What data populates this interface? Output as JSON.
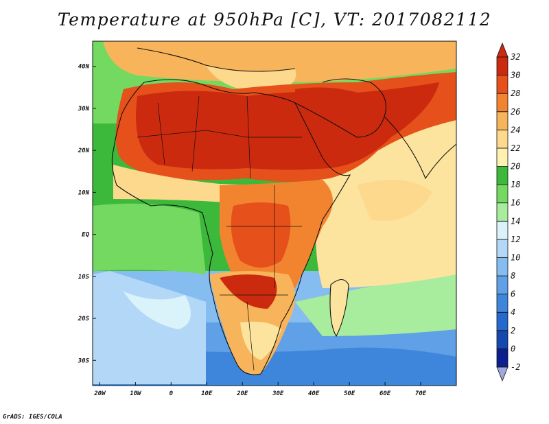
{
  "title": "Temperature at 950hPa [C], VT: 2017082112",
  "footer": "GrADS: IGES/COLA",
  "map": {
    "projection": "latlon",
    "lon_range": [
      -22,
      80
    ],
    "lat_range": [
      -36,
      46
    ],
    "lat_ticks": [
      {
        "value": 40,
        "label": "40N"
      },
      {
        "value": 30,
        "label": "30N"
      },
      {
        "value": 20,
        "label": "20N"
      },
      {
        "value": 10,
        "label": "10N"
      },
      {
        "value": 0,
        "label": "EQ"
      },
      {
        "value": -10,
        "label": "10S"
      },
      {
        "value": -20,
        "label": "20S"
      },
      {
        "value": -30,
        "label": "30S"
      }
    ],
    "lon_ticks": [
      {
        "value": -20,
        "label": "20W"
      },
      {
        "value": -10,
        "label": "10W"
      },
      {
        "value": 0,
        "label": "0"
      },
      {
        "value": 10,
        "label": "10E"
      },
      {
        "value": 20,
        "label": "20E"
      },
      {
        "value": 30,
        "label": "30E"
      },
      {
        "value": 40,
        "label": "40E"
      },
      {
        "value": 50,
        "label": "50E"
      },
      {
        "value": 60,
        "label": "60E"
      },
      {
        "value": 70,
        "label": "70E"
      }
    ]
  },
  "colorbar": {
    "levels": [
      "-2",
      "0",
      "2",
      "4",
      "6",
      "8",
      "10",
      "12",
      "14",
      "16",
      "18",
      "20",
      "22",
      "24",
      "26",
      "28",
      "30",
      "32"
    ],
    "colors": [
      "#9fa7dd",
      "#0c1f8e",
      "#1649b0",
      "#2469cc",
      "#3d86db",
      "#5fa0e6",
      "#86bdf0",
      "#b3d8f7",
      "#daf2fa",
      "#a8ec9d",
      "#73d960",
      "#3cb93a",
      "#fff2b0",
      "#fcd98d",
      "#f8b45a",
      "#f3842f",
      "#e6501a",
      "#cc2a0e",
      "#ce2a0f"
    ]
  },
  "regions": [
    {
      "name": "sahara-hot-core",
      "color": "#d22d0e"
    },
    {
      "name": "southern-ocean-cool",
      "color": "#5fa0e6"
    },
    {
      "name": "indian-ocean-mild",
      "color": "#fce39e"
    }
  ]
}
